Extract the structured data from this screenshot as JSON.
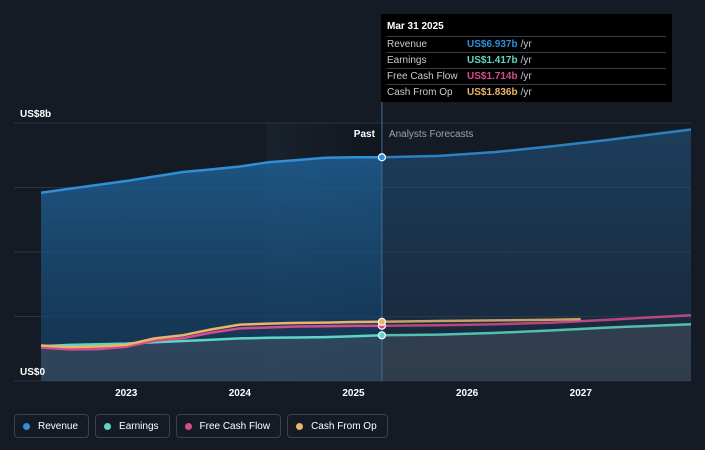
{
  "chart_data": {
    "type": "area",
    "y_axis": {
      "top_label": "US$8b",
      "bottom_label": "US$0",
      "ylim": [
        0,
        8
      ]
    },
    "x_axis": {
      "tick_labels": [
        "2023",
        "2024",
        "2025",
        "2026",
        "2027"
      ],
      "xlim": [
        2022.25,
        2027.97
      ]
    },
    "divider": {
      "x": 2025.25,
      "past_label": "Past",
      "forecast_label": "Analysts Forecasts"
    },
    "grid": true,
    "series": [
      {
        "name": "Revenue",
        "color": "#2f8fd8",
        "past": [
          [
            2022.25,
            5.84
          ],
          [
            2022.5,
            5.96
          ],
          [
            2022.75,
            6.08
          ],
          [
            2023.0,
            6.2
          ],
          [
            2023.25,
            6.34
          ],
          [
            2023.5,
            6.48
          ],
          [
            2023.75,
            6.56
          ],
          [
            2024.0,
            6.65
          ],
          [
            2024.25,
            6.78
          ],
          [
            2024.5,
            6.85
          ],
          [
            2024.75,
            6.92
          ],
          [
            2025.0,
            6.94
          ],
          [
            2025.25,
            6.937
          ]
        ],
        "forecast": [
          [
            2025.25,
            6.937
          ],
          [
            2025.75,
            6.98
          ],
          [
            2026.25,
            7.1
          ],
          [
            2026.75,
            7.28
          ],
          [
            2027.25,
            7.48
          ],
          [
            2027.97,
            7.8
          ]
        ]
      },
      {
        "name": "Earnings",
        "color": "#5ed6c4",
        "past": [
          [
            2022.25,
            1.08
          ],
          [
            2022.5,
            1.12
          ],
          [
            2022.75,
            1.14
          ],
          [
            2023.0,
            1.16
          ],
          [
            2023.25,
            1.2
          ],
          [
            2023.5,
            1.24
          ],
          [
            2023.75,
            1.28
          ],
          [
            2024.0,
            1.32
          ],
          [
            2024.25,
            1.34
          ],
          [
            2024.5,
            1.35
          ],
          [
            2024.75,
            1.36
          ],
          [
            2025.0,
            1.39
          ],
          [
            2025.25,
            1.417
          ]
        ],
        "forecast": [
          [
            2025.25,
            1.417
          ],
          [
            2025.75,
            1.44
          ],
          [
            2026.25,
            1.49
          ],
          [
            2026.75,
            1.57
          ],
          [
            2027.25,
            1.66
          ],
          [
            2027.97,
            1.76
          ]
        ]
      },
      {
        "name": "Free Cash Flow",
        "color": "#d64b8c",
        "past": [
          [
            2022.25,
            1.04
          ],
          [
            2022.5,
            0.98
          ],
          [
            2022.75,
            0.99
          ],
          [
            2023.0,
            1.06
          ],
          [
            2023.25,
            1.25
          ],
          [
            2023.5,
            1.33
          ],
          [
            2023.75,
            1.5
          ],
          [
            2024.0,
            1.63
          ],
          [
            2024.25,
            1.66
          ],
          [
            2024.5,
            1.69
          ],
          [
            2024.75,
            1.7
          ],
          [
            2025.0,
            1.71
          ],
          [
            2025.25,
            1.714
          ]
        ],
        "forecast": [
          [
            2025.25,
            1.714
          ],
          [
            2025.75,
            1.73
          ],
          [
            2026.25,
            1.76
          ],
          [
            2026.75,
            1.81
          ],
          [
            2027.25,
            1.9
          ],
          [
            2027.97,
            2.04
          ]
        ]
      },
      {
        "name": "Cash From Op",
        "color": "#e8b56a",
        "past": [
          [
            2022.25,
            1.1
          ],
          [
            2022.5,
            1.05
          ],
          [
            2022.75,
            1.07
          ],
          [
            2023.0,
            1.12
          ],
          [
            2023.25,
            1.32
          ],
          [
            2023.5,
            1.42
          ],
          [
            2023.75,
            1.6
          ],
          [
            2024.0,
            1.75
          ],
          [
            2024.25,
            1.78
          ],
          [
            2024.5,
            1.8
          ],
          [
            2024.75,
            1.81
          ],
          [
            2025.0,
            1.83
          ],
          [
            2025.25,
            1.836
          ]
        ],
        "forecast": [
          [
            2025.25,
            1.836
          ],
          [
            2025.75,
            1.86
          ],
          [
            2026.25,
            1.88
          ],
          [
            2026.75,
            1.9
          ],
          [
            2027.0,
            1.92
          ]
        ]
      }
    ]
  },
  "tooltip": {
    "date": "Mar 31 2025",
    "rows": [
      {
        "name": "Revenue",
        "value": "US$6.937b",
        "unit": "/yr",
        "color": "#2f8fd8"
      },
      {
        "name": "Earnings",
        "value": "US$1.417b",
        "unit": "/yr",
        "color": "#5ed6c4"
      },
      {
        "name": "Free Cash Flow",
        "value": "US$1.714b",
        "unit": "/yr",
        "color": "#d64b8c"
      },
      {
        "name": "Cash From Op",
        "value": "US$1.836b",
        "unit": "/yr",
        "color": "#e8b56a"
      }
    ]
  },
  "legend": [
    {
      "label": "Revenue",
      "color": "#2f8fd8"
    },
    {
      "label": "Earnings",
      "color": "#5ed6c4"
    },
    {
      "label": "Free Cash Flow",
      "color": "#d64b8c"
    },
    {
      "label": "Cash From Op",
      "color": "#e8b56a"
    }
  ]
}
